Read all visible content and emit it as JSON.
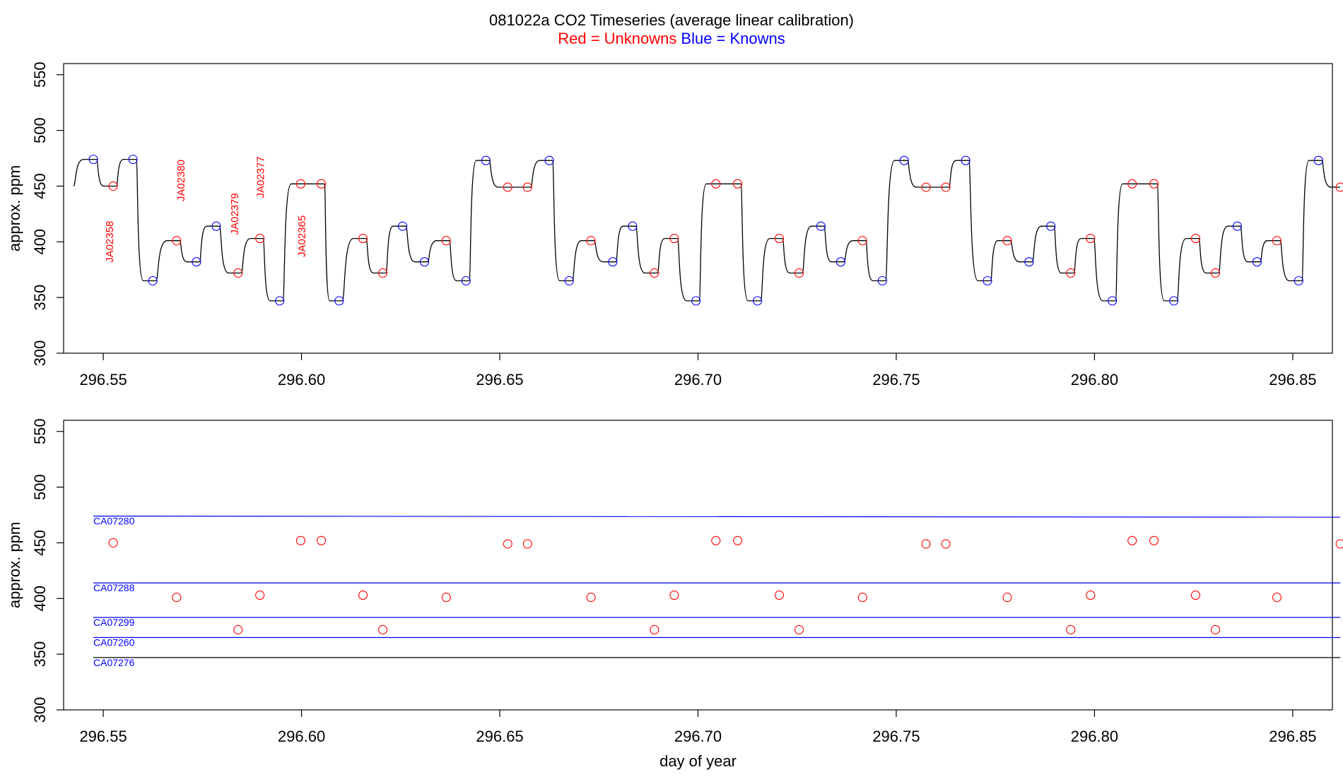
{
  "title": "081022a   CO2 Timeseries (average linear calibration)",
  "subtitle": {
    "red": "Red = Unknowns",
    "blue": "Blue = Knowns"
  },
  "colors": {
    "unknown": "#ff0000",
    "known": "#0000ff",
    "trace": "#000000",
    "axis": "#000000",
    "background": "#ffffff"
  },
  "chart_data": [
    {
      "type": "line",
      "panel": "top",
      "ylabel": "approx. ppm",
      "xlabel": "",
      "xlim": [
        296.54,
        296.86
      ],
      "ylim": [
        300,
        560
      ],
      "xticks": [
        "296.55",
        "296.60",
        "296.65",
        "296.70",
        "296.75",
        "296.80",
        "296.85"
      ],
      "yticks": [
        "300",
        "350",
        "400",
        "450",
        "500",
        "550"
      ],
      "trace_start": [
        296.5425,
        450
      ],
      "known_points": {
        "x": [
          296.5475,
          296.5575,
          296.5625,
          296.5785,
          296.5735,
          296.5945,
          296.6095,
          296.6255,
          296.631,
          296.6415,
          296.6465,
          296.6625,
          296.6675,
          296.6835,
          296.6785,
          296.6995,
          296.715,
          296.731,
          296.736,
          296.7465,
          296.752,
          296.7675,
          296.773,
          296.789,
          296.7835,
          296.8045,
          296.82,
          296.836,
          296.841,
          296.8515,
          296.8565
        ],
        "y": [
          474,
          474,
          365,
          414,
          382,
          347,
          347,
          414,
          382,
          365,
          473,
          473,
          365,
          414,
          382,
          347,
          347,
          414,
          382,
          365,
          473,
          473,
          365,
          414,
          382,
          347,
          347,
          414,
          382,
          365,
          473
        ]
      },
      "unknown_points": {
        "x": [
          296.5525,
          296.5685,
          296.584,
          296.5895,
          296.5998,
          296.605,
          296.6155,
          296.6205,
          296.6365,
          296.652,
          296.657,
          296.673,
          296.689,
          296.694,
          296.7045,
          296.71,
          296.7205,
          296.7255,
          296.7415,
          296.7575,
          296.7625,
          296.778,
          296.794,
          296.799,
          296.8095,
          296.815,
          296.8255,
          296.8305,
          296.846,
          296.862
        ],
        "y": [
          450,
          401,
          372,
          403,
          452,
          452,
          403,
          372,
          401,
          449,
          449,
          401,
          372,
          403,
          452,
          452,
          403,
          372,
          401,
          449,
          449,
          401,
          372,
          403,
          452,
          452,
          403,
          372,
          401,
          449
        ]
      },
      "annotations": [
        {
          "text": "JA02358",
          "x": 296.5525,
          "y": 400
        },
        {
          "text": "JA02380",
          "x": 296.5705,
          "y": 455
        },
        {
          "text": "JA02379",
          "x": 296.584,
          "y": 425
        },
        {
          "text": "JA02377",
          "x": 296.5905,
          "y": 458
        },
        {
          "text": "JA02365",
          "x": 296.601,
          "y": 405
        }
      ]
    },
    {
      "type": "scatter",
      "panel": "bottom",
      "ylabel": "approx. ppm",
      "xlabel": "day of year",
      "xlim": [
        296.54,
        296.86
      ],
      "ylim": [
        300,
        560
      ],
      "xticks": [
        "296.55",
        "296.60",
        "296.65",
        "296.70",
        "296.75",
        "296.80",
        "296.85"
      ],
      "yticks": [
        "300",
        "350",
        "400",
        "450",
        "500",
        "550"
      ],
      "standards": [
        {
          "name": "CA07280",
          "x": [
            296.5475,
            296.862
          ],
          "y": [
            474,
            473
          ],
          "color": "#0000ff"
        },
        {
          "name": "CA07288",
          "x": [
            296.5475,
            296.862
          ],
          "y": [
            414,
            414
          ],
          "color": "#0000ff"
        },
        {
          "name": "CA07299",
          "x": [
            296.5475,
            296.862
          ],
          "y": [
            383,
            383
          ],
          "color": "#0000ff"
        },
        {
          "name": "CA07260",
          "x": [
            296.5475,
            296.862
          ],
          "y": [
            365,
            365
          ],
          "color": "#0000ff"
        },
        {
          "name": "CA07276",
          "x": [
            296.5475,
            296.862
          ],
          "y": [
            347,
            347
          ],
          "color": "#000000"
        }
      ],
      "unknown_points": {
        "x": [
          296.5525,
          296.5685,
          296.584,
          296.5895,
          296.5998,
          296.605,
          296.6155,
          296.6205,
          296.6365,
          296.652,
          296.657,
          296.673,
          296.689,
          296.694,
          296.7045,
          296.71,
          296.7205,
          296.7255,
          296.7415,
          296.7575,
          296.7625,
          296.778,
          296.794,
          296.799,
          296.8095,
          296.815,
          296.8255,
          296.8305,
          296.846,
          296.862
        ],
        "y": [
          450,
          401,
          372,
          403,
          452,
          452,
          403,
          372,
          401,
          449,
          449,
          401,
          372,
          403,
          452,
          452,
          403,
          372,
          401,
          449,
          449,
          401,
          372,
          403,
          452,
          452,
          403,
          372,
          401,
          449
        ]
      }
    }
  ]
}
